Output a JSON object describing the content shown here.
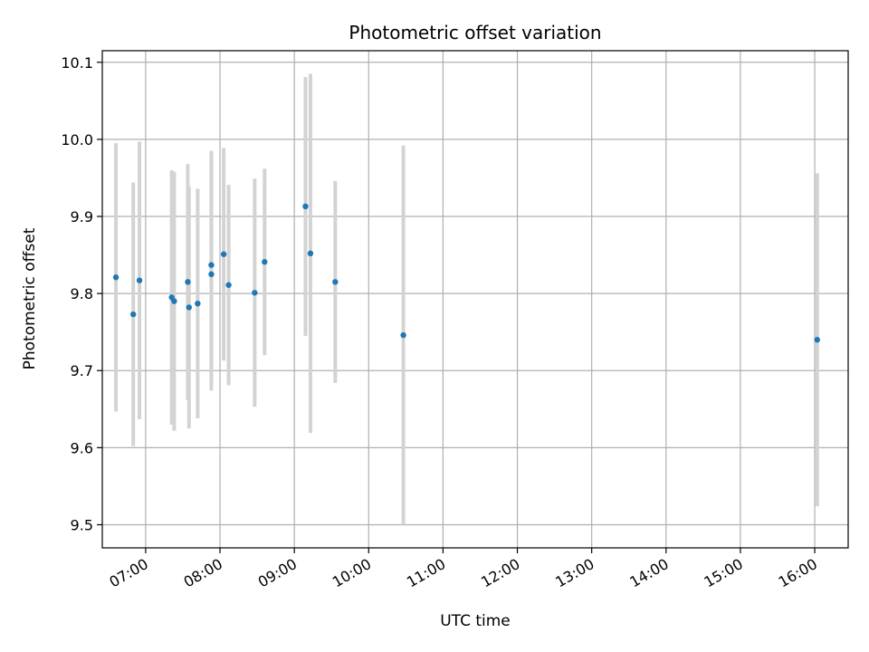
{
  "chart_data": {
    "type": "scatter",
    "title": "Photometric offset variation",
    "xlabel": "UTC time",
    "ylabel": "Photometric offset",
    "x_ticks": [
      "07:00",
      "08:00",
      "09:00",
      "10:00",
      "11:00",
      "12:00",
      "13:00",
      "14:00",
      "15:00",
      "16:00"
    ],
    "y_ticks": [
      "9.5",
      "9.6",
      "9.7",
      "9.8",
      "9.9",
      "10.0",
      "10.1"
    ],
    "xlim": [
      "06:25",
      "16:27"
    ],
    "ylim": [
      9.47,
      10.115
    ],
    "grid": true,
    "marker_color": "#1f77b4",
    "errorbar_color": "#d3d3d3",
    "points": [
      {
        "x": "06:36",
        "y": 9.821,
        "err": 0.174
      },
      {
        "x": "06:50",
        "y": 9.773,
        "err": 0.171
      },
      {
        "x": "06:55",
        "y": 9.817,
        "err": 0.18
      },
      {
        "x": "07:21",
        "y": 9.795,
        "err": 0.165
      },
      {
        "x": "07:23",
        "y": 9.79,
        "err": 0.168
      },
      {
        "x": "07:34",
        "y": 9.815,
        "err": 0.153
      },
      {
        "x": "07:35",
        "y": 9.782,
        "err": 0.157
      },
      {
        "x": "07:42",
        "y": 9.787,
        "err": 0.149
      },
      {
        "x": "07:53",
        "y": 9.837,
        "err": 0.148
      },
      {
        "x": "07:53",
        "y": 9.825,
        "err": 0.151
      },
      {
        "x": "08:03",
        "y": 9.851,
        "err": 0.138
      },
      {
        "x": "08:07",
        "y": 9.811,
        "err": 0.13
      },
      {
        "x": "08:28",
        "y": 9.801,
        "err": 0.148
      },
      {
        "x": "08:36",
        "y": 9.841,
        "err": 0.121
      },
      {
        "x": "09:09",
        "y": 9.913,
        "err": 0.168
      },
      {
        "x": "09:13",
        "y": 9.852,
        "err": 0.233
      },
      {
        "x": "09:33",
        "y": 9.815,
        "err": 0.131
      },
      {
        "x": "10:28",
        "y": 9.746,
        "err": 0.246
      },
      {
        "x": "16:02",
        "y": 9.74,
        "err": 0.216
      }
    ]
  }
}
